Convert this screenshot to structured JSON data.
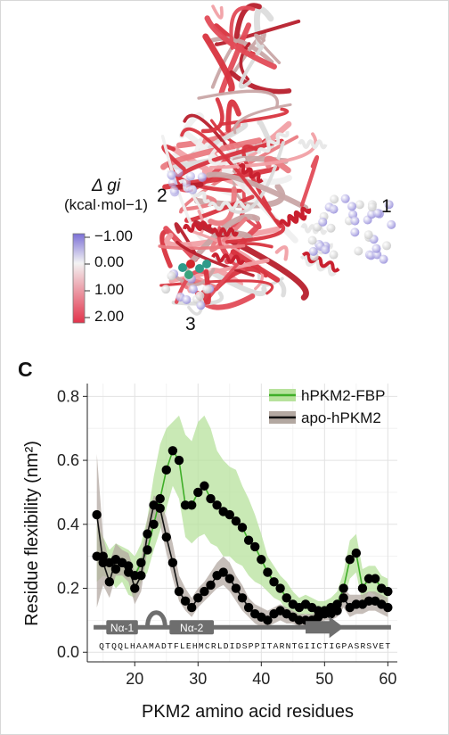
{
  "panel_label": "C",
  "structure": {
    "colorbar_title_line1": "Δ gi",
    "colorbar_title_line2": "(kcal·mol−1)",
    "colorbar_ticks": [
      "−1.00",
      "0.00",
      "1.00",
      "2.00"
    ],
    "colors": {
      "low": "#7b6fd6",
      "mid": "#f3f3f3",
      "high": "#e2334b"
    },
    "site_labels": [
      "1",
      "2",
      "3"
    ]
  },
  "chart_data": {
    "type": "line",
    "xlabel": "PKM2 amino acid residues",
    "ylabel": "Residue flexibility (nm²)",
    "xlim": [
      12.5,
      61.5
    ],
    "ylim": [
      -0.03,
      0.84
    ],
    "xticks": [
      20,
      30,
      40,
      50,
      60
    ],
    "yticks": [
      0.0,
      0.2,
      0.4,
      0.6,
      0.8
    ],
    "grid": true,
    "legend_position": "top-right",
    "sequence": "QTQQLHAAMADTFLEHMCRLDIDSPPITARNTGIICTIGPASRSVET",
    "secondary_structure": [
      {
        "label": "Nα-1",
        "type": "helix",
        "start": 15.5,
        "end": 20.5
      },
      {
        "label": "",
        "type": "loop",
        "start": 22,
        "end": 24.8
      },
      {
        "label": "Nα-2",
        "type": "helix",
        "start": 25.5,
        "end": 32.5
      },
      {
        "label": "",
        "type": "strand",
        "start": 47,
        "end": 53
      }
    ],
    "series": [
      {
        "name": "hPKM2-FBP",
        "color": "#3fae28",
        "band_color": "#b7e29c",
        "x": [
          14,
          15,
          16,
          17,
          18,
          19,
          20,
          21,
          22,
          23,
          24,
          25,
          26,
          27,
          28,
          29,
          30,
          31,
          32,
          33,
          34,
          35,
          36,
          37,
          38,
          39,
          40,
          41,
          42,
          43,
          44,
          45,
          46,
          47,
          48,
          49,
          50,
          51,
          52,
          53,
          54,
          55,
          56,
          57,
          58,
          59,
          60
        ],
        "values": [
          0.3,
          0.3,
          0.28,
          0.26,
          0.28,
          0.25,
          0.24,
          0.28,
          0.32,
          0.4,
          0.48,
          0.57,
          0.63,
          0.6,
          0.46,
          0.46,
          0.5,
          0.52,
          0.48,
          0.46,
          0.44,
          0.43,
          0.41,
          0.39,
          0.35,
          0.33,
          0.29,
          0.25,
          0.22,
          0.2,
          0.17,
          0.15,
          0.14,
          0.15,
          0.14,
          0.13,
          0.13,
          0.14,
          0.15,
          0.2,
          0.29,
          0.31,
          0.2,
          0.23,
          0.23,
          0.2,
          0.19
        ],
        "upper": [
          0.4,
          0.36,
          0.32,
          0.34,
          0.33,
          0.32,
          0.3,
          0.34,
          0.42,
          0.55,
          0.65,
          0.7,
          0.72,
          0.74,
          0.68,
          0.66,
          0.72,
          0.74,
          0.7,
          0.63,
          0.6,
          0.58,
          0.57,
          0.52,
          0.48,
          0.43,
          0.37,
          0.3,
          0.27,
          0.24,
          0.22,
          0.19,
          0.17,
          0.18,
          0.17,
          0.16,
          0.16,
          0.17,
          0.19,
          0.25,
          0.35,
          0.37,
          0.26,
          0.27,
          0.27,
          0.24,
          0.23
        ],
        "lower": [
          0.22,
          0.24,
          0.23,
          0.2,
          0.22,
          0.18,
          0.17,
          0.22,
          0.25,
          0.32,
          0.38,
          0.45,
          0.52,
          0.48,
          0.36,
          0.34,
          0.36,
          0.37,
          0.34,
          0.33,
          0.3,
          0.3,
          0.28,
          0.27,
          0.24,
          0.22,
          0.21,
          0.19,
          0.17,
          0.16,
          0.13,
          0.12,
          0.11,
          0.12,
          0.11,
          0.1,
          0.11,
          0.11,
          0.12,
          0.16,
          0.23,
          0.25,
          0.15,
          0.19,
          0.18,
          0.16,
          0.15
        ]
      },
      {
        "name": "apo-hPKM2",
        "color": "#111111",
        "band_color": "#b3a8a1",
        "x": [
          14,
          15,
          16,
          17,
          18,
          19,
          20,
          21,
          22,
          23,
          24,
          25,
          26,
          27,
          28,
          29,
          30,
          31,
          32,
          33,
          34,
          35,
          36,
          37,
          38,
          39,
          40,
          41,
          42,
          43,
          44,
          45,
          46,
          47,
          48,
          49,
          50,
          51,
          52,
          53,
          54,
          55,
          56,
          57,
          58,
          59,
          60
        ],
        "values": [
          0.43,
          0.28,
          0.22,
          0.29,
          0.28,
          0.27,
          0.2,
          0.24,
          0.37,
          0.46,
          0.45,
          0.36,
          0.28,
          0.19,
          0.16,
          0.14,
          0.17,
          0.19,
          0.21,
          0.24,
          0.25,
          0.23,
          0.2,
          0.17,
          0.14,
          0.12,
          0.11,
          0.1,
          0.12,
          0.13,
          0.12,
          0.11,
          0.1,
          0.1,
          0.1,
          0.11,
          0.12,
          0.12,
          0.13,
          0.17,
          0.14,
          0.15,
          0.15,
          0.16,
          0.16,
          0.15,
          0.14
        ],
        "upper": [
          0.62,
          0.36,
          0.28,
          0.34,
          0.32,
          0.31,
          0.25,
          0.29,
          0.42,
          0.49,
          0.48,
          0.42,
          0.34,
          0.24,
          0.2,
          0.17,
          0.2,
          0.22,
          0.25,
          0.28,
          0.3,
          0.28,
          0.24,
          0.21,
          0.17,
          0.15,
          0.14,
          0.13,
          0.14,
          0.15,
          0.14,
          0.13,
          0.12,
          0.12,
          0.12,
          0.13,
          0.14,
          0.14,
          0.16,
          0.2,
          0.18,
          0.18,
          0.18,
          0.19,
          0.19,
          0.18,
          0.17
        ],
        "lower": [
          0.14,
          0.21,
          0.17,
          0.24,
          0.24,
          0.22,
          0.15,
          0.19,
          0.32,
          0.42,
          0.4,
          0.31,
          0.23,
          0.16,
          0.13,
          0.11,
          0.14,
          0.16,
          0.18,
          0.2,
          0.21,
          0.19,
          0.16,
          0.13,
          0.11,
          0.09,
          0.08,
          0.08,
          0.09,
          0.1,
          0.09,
          0.09,
          0.08,
          0.08,
          0.08,
          0.09,
          0.1,
          0.1,
          0.11,
          0.14,
          0.11,
          0.12,
          0.12,
          0.13,
          0.13,
          0.12,
          0.11
        ]
      }
    ]
  }
}
